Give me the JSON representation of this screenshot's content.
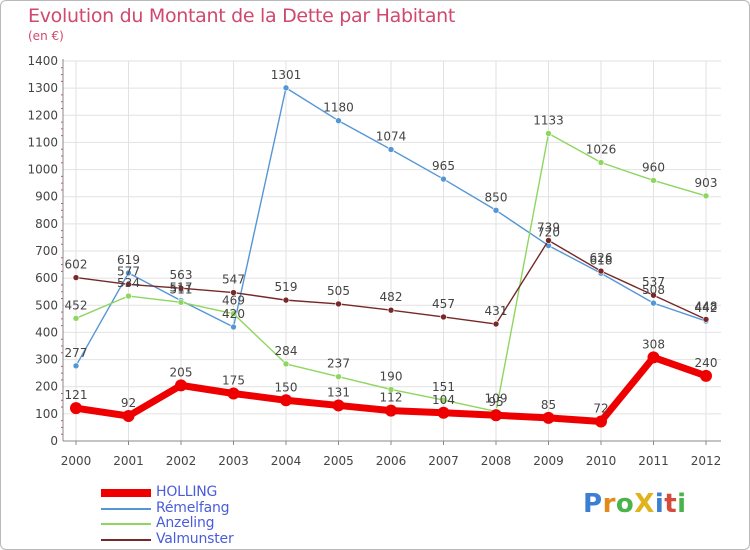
{
  "title": "Evolution du Montant de la Dette par Habitant",
  "unit_label": "(en €)",
  "logo": {
    "text": "ProXiti",
    "colors": [
      "#3a7fd4",
      "#e48a1c",
      "#4bb34b",
      "#e0b31c",
      "#3a7fd4",
      "#d64a3c",
      "#4bb34b"
    ]
  },
  "chart_data": {
    "type": "line",
    "x": [
      "2000",
      "2001",
      "2002",
      "2003",
      "2004",
      "2005",
      "2006",
      "2007",
      "2008",
      "2009",
      "2010",
      "2011",
      "2012"
    ],
    "ylim": [
      0,
      1400
    ],
    "yticks": [
      0,
      100,
      200,
      300,
      400,
      500,
      600,
      700,
      800,
      900,
      1000,
      1100,
      1200,
      1300,
      1400
    ],
    "grid": true,
    "legend_position": "bottom-left",
    "series": [
      {
        "name": "HOLLING",
        "color": "#ee0000",
        "values": [
          121,
          92,
          205,
          175,
          150,
          131,
          112,
          104,
          95,
          85,
          72,
          308,
          240
        ],
        "labels": [
          "121",
          "92",
          "205",
          "175",
          "150",
          "131",
          "112",
          "104",
          "95",
          "85",
          "72",
          "308",
          "240"
        ]
      },
      {
        "name": "Rémelfang",
        "color": "#5596d6",
        "values": [
          277,
          619,
          517,
          420,
          1301,
          1180,
          1074,
          965,
          850,
          720,
          618,
          508,
          442
        ],
        "labels": [
          "277",
          "619",
          "517",
          "420",
          "1301",
          "1180",
          "1074",
          "965",
          "850",
          "720",
          "618",
          "508",
          "442"
        ]
      },
      {
        "name": "Anzeling",
        "color": "#8ed660",
        "values": [
          452,
          534,
          511,
          469,
          284,
          237,
          190,
          151,
          109,
          1133,
          1026,
          960,
          903
        ],
        "labels": [
          "452",
          "534",
          "511",
          "469",
          "284",
          "237",
          "190",
          "151",
          "109",
          "1133",
          "1026",
          "960",
          "903"
        ]
      },
      {
        "name": "Valmunster",
        "color": "#772828",
        "values": [
          602,
          577,
          563,
          547,
          519,
          505,
          482,
          457,
          431,
          739,
          626,
          537,
          448
        ],
        "labels": [
          "602",
          "577",
          "563",
          "547",
          "519",
          "505",
          "482",
          "457",
          "431",
          "739",
          "626",
          "537",
          "448"
        ]
      }
    ]
  }
}
